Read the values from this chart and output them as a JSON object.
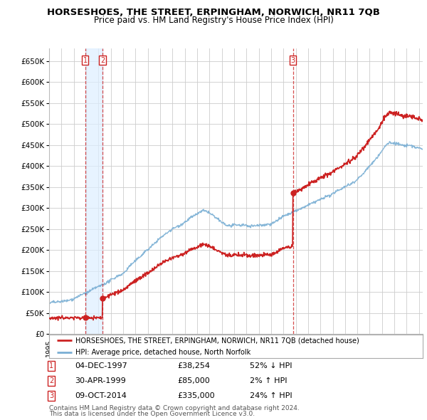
{
  "title": "HORSESHOES, THE STREET, ERPINGHAM, NORWICH, NR11 7QB",
  "subtitle": "Price paid vs. HM Land Registry's House Price Index (HPI)",
  "legend_line1": "HORSESHOES, THE STREET, ERPINGHAM, NORWICH, NR11 7QB (detached house)",
  "legend_line2": "HPI: Average price, detached house, North Norfolk",
  "footer1": "Contains HM Land Registry data © Crown copyright and database right 2024.",
  "footer2": "This data is licensed under the Open Government Licence v3.0.",
  "transactions": [
    {
      "num": 1,
      "date": "04-DEC-1997",
      "price": 38254,
      "pct": "52%",
      "dir": "↓",
      "year": 1997.92
    },
    {
      "num": 2,
      "date": "30-APR-1999",
      "price": 85000,
      "pct": "2%",
      "dir": "↑",
      "year": 1999.33
    },
    {
      "num": 3,
      "date": "09-OCT-2014",
      "price": 335000,
      "pct": "24%",
      "dir": "↑",
      "year": 2014.77
    }
  ],
  "ylim": [
    0,
    680000
  ],
  "yticks": [
    0,
    50000,
    100000,
    150000,
    200000,
    250000,
    300000,
    350000,
    400000,
    450000,
    500000,
    550000,
    600000,
    650000
  ],
  "background_color": "#ffffff",
  "grid_color": "#cccccc",
  "hpi_color": "#7aafd4",
  "price_color": "#cc2222",
  "vline_color": "#cc2222",
  "shade_color": "#ddeeff",
  "title_color": "#000000",
  "xmin": 1995,
  "xmax": 2025.3
}
